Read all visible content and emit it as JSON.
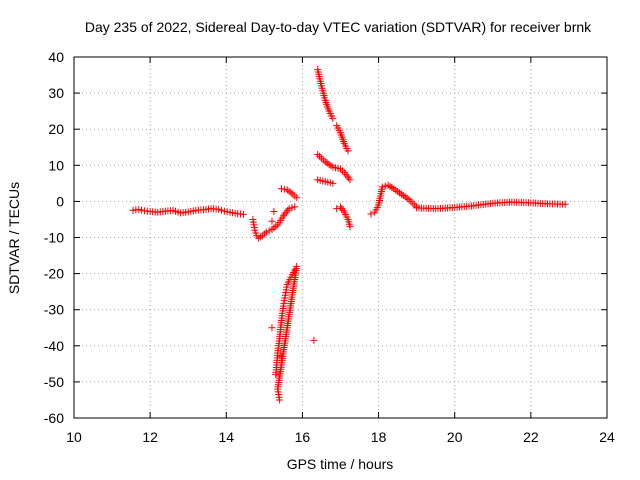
{
  "chart_data": {
    "type": "scatter",
    "title": "Day 235 of 2022, Sidereal Day-to-day VTEC variation (SDTVAR) for receiver brnk",
    "xlabel": "GPS time / hours",
    "ylabel": "SDTVAR / TECUs",
    "xlim": [
      10,
      24
    ],
    "ylim": [
      -60,
      40
    ],
    "xticks": [
      10,
      12,
      14,
      16,
      18,
      20,
      22,
      24
    ],
    "yticks": [
      -60,
      -50,
      -40,
      -30,
      -20,
      -10,
      0,
      10,
      20,
      30,
      40
    ],
    "grid": true,
    "marker": "+",
    "series_color": "#ff0000",
    "series": [
      {
        "name": "main-trace-1",
        "points": [
          [
            11.55,
            -2.5
          ],
          [
            11.7,
            -2.2
          ],
          [
            11.85,
            -2.6
          ],
          [
            12.0,
            -2.8
          ],
          [
            12.2,
            -3.0
          ],
          [
            12.4,
            -2.7
          ],
          [
            12.6,
            -2.5
          ],
          [
            12.8,
            -3.2
          ],
          [
            13.0,
            -2.9
          ],
          [
            13.2,
            -2.5
          ],
          [
            13.4,
            -2.3
          ],
          [
            13.6,
            -2.0
          ],
          [
            13.8,
            -2.2
          ],
          [
            13.95,
            -2.7
          ],
          [
            14.1,
            -3.0
          ],
          [
            14.3,
            -3.4
          ],
          [
            14.45,
            -3.6
          ]
        ]
      },
      {
        "name": "main-trace-2",
        "points": [
          [
            14.7,
            -5.0
          ],
          [
            14.75,
            -8.0
          ],
          [
            14.8,
            -9.5
          ],
          [
            14.85,
            -10.2
          ],
          [
            14.95,
            -9.5
          ],
          [
            15.05,
            -8.5
          ],
          [
            15.2,
            -7.8
          ],
          [
            15.35,
            -6.5
          ],
          [
            15.5,
            -4.0
          ],
          [
            15.65,
            -2.0
          ],
          [
            15.8,
            -1.5
          ]
        ]
      },
      {
        "name": "arc-up",
        "points": [
          [
            15.45,
            3.5
          ],
          [
            15.6,
            3.2
          ],
          [
            15.75,
            2.0
          ],
          [
            15.85,
            1.0
          ]
        ]
      },
      {
        "name": "downward-plunge",
        "points": [
          [
            15.3,
            -48
          ],
          [
            15.35,
            -42
          ],
          [
            15.4,
            -38
          ],
          [
            15.45,
            -33
          ],
          [
            15.5,
            -29
          ],
          [
            15.55,
            -26
          ],
          [
            15.6,
            -23
          ],
          [
            15.7,
            -21
          ],
          [
            15.8,
            -19
          ],
          [
            15.85,
            -18
          ],
          [
            15.35,
            -52
          ],
          [
            15.4,
            -55
          ]
        ]
      },
      {
        "name": "steep-rise",
        "points": [
          [
            16.4,
            36.5
          ],
          [
            16.5,
            32
          ],
          [
            16.6,
            28
          ],
          [
            16.7,
            25
          ],
          [
            16.8,
            23
          ]
        ]
      },
      {
        "name": "upper-right-arc",
        "points": [
          [
            16.9,
            21
          ],
          [
            17.0,
            19
          ],
          [
            17.1,
            16
          ],
          [
            17.2,
            14
          ]
        ]
      },
      {
        "name": "mid-arc-a",
        "points": [
          [
            16.4,
            13
          ],
          [
            16.6,
            11
          ],
          [
            16.8,
            9.5
          ],
          [
            17.0,
            9
          ],
          [
            17.1,
            8
          ],
          [
            17.25,
            6
          ]
        ]
      },
      {
        "name": "mid-arc-b",
        "points": [
          [
            16.4,
            6
          ],
          [
            16.6,
            5.5
          ],
          [
            16.8,
            5.0
          ]
        ]
      },
      {
        "name": "lower-arc",
        "points": [
          [
            16.9,
            -2
          ],
          [
            17.0,
            -1.5
          ],
          [
            17.1,
            -3
          ],
          [
            17.2,
            -5
          ],
          [
            17.25,
            -7
          ]
        ]
      },
      {
        "name": "recovery-rise",
        "points": [
          [
            17.8,
            -3.5
          ],
          [
            17.9,
            -3.0
          ],
          [
            18.0,
            -1.0
          ],
          [
            18.1,
            4.0
          ],
          [
            18.25,
            4.5
          ],
          [
            18.4,
            3.5
          ],
          [
            18.6,
            2.0
          ],
          [
            18.8,
            0.5
          ],
          [
            18.9,
            -0.5
          ],
          [
            19.0,
            -1.5
          ]
        ]
      },
      {
        "name": "main-trace-3",
        "points": [
          [
            19.0,
            -1.8
          ],
          [
            19.5,
            -2.0
          ],
          [
            20.0,
            -1.7
          ],
          [
            20.5,
            -1.2
          ],
          [
            21.0,
            -0.5
          ],
          [
            21.5,
            -0.2
          ],
          [
            22.0,
            -0.4
          ],
          [
            22.5,
            -0.7
          ],
          [
            22.9,
            -0.8
          ]
        ]
      },
      {
        "name": "outliers",
        "points": [
          [
            15.2,
            -35
          ],
          [
            15.25,
            -2.8
          ],
          [
            15.2,
            -5.5
          ],
          [
            16.3,
            -38.5
          ],
          [
            15.45,
            -43
          ]
        ]
      }
    ]
  }
}
